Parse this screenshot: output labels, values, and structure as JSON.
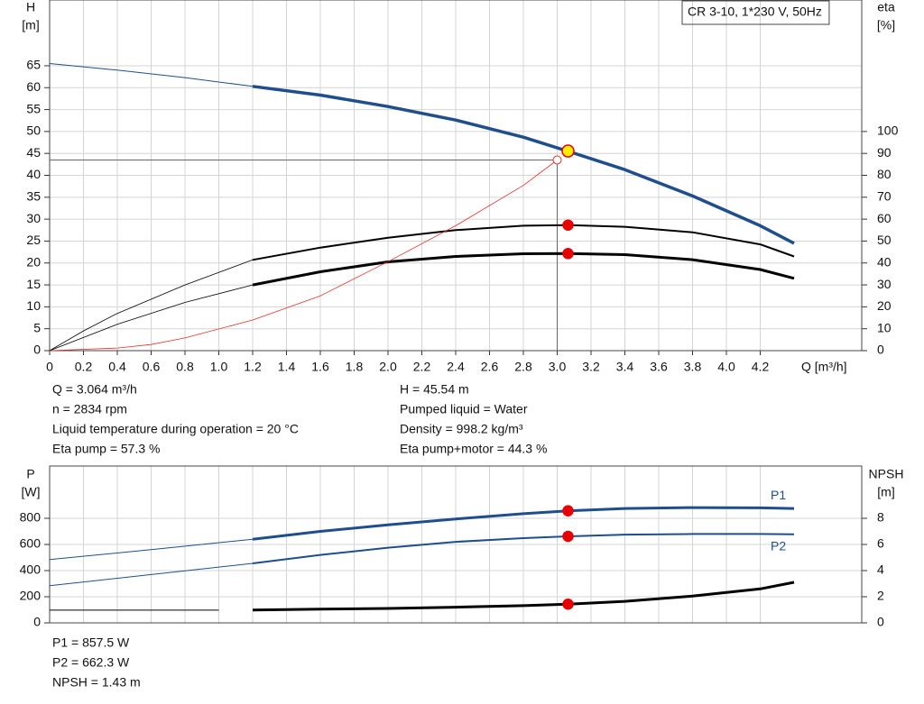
{
  "chart_data": [
    {
      "type": "line",
      "title": "CR 3-10, 1*230 V, 50Hz",
      "ylabel": "H",
      "yunit": "[m]",
      "y2label": "eta",
      "y2unit": "[%]",
      "xlabel": "Q [m³/h]",
      "xlim": [
        0,
        4.8
      ],
      "ylim": [
        0,
        80
      ],
      "y2lim": [
        0,
        160
      ],
      "xticks": [
        0,
        0.2,
        0.4,
        0.6,
        0.8,
        {
          "value": 1,
          "label": "1.0"
        },
        1.2,
        1.4,
        1.6,
        1.8,
        {
          "value": 2,
          "label": "2.0"
        },
        2.2,
        2.4,
        2.6,
        2.8,
        {
          "value": 3,
          "label": "3.0"
        },
        3.2,
        3.4,
        3.6,
        3.8,
        {
          "value": 4,
          "label": "4.0"
        },
        4.2
      ],
      "yticks": [
        0,
        5,
        10,
        15,
        20,
        25,
        30,
        35,
        40,
        45,
        50,
        55,
        60,
        65
      ],
      "y2ticks": [
        0,
        10,
        20,
        30,
        40,
        50,
        60,
        70,
        80,
        90,
        100
      ],
      "show_xtick_labels": true,
      "grid": true,
      "series": [
        {
          "color": "#1f4e8c",
          "width": 1,
          "x": [
            0,
            0.4,
            0.8,
            1.2
          ],
          "values": [
            65.5,
            64,
            62.3,
            60.3
          ]
        },
        {
          "color": "#1f4e8c",
          "width": 3.5,
          "x": [
            1.2,
            1.6,
            2.0,
            2.4,
            2.8,
            3.064,
            3.4,
            3.8,
            4.2,
            4.4
          ],
          "values": [
            60.3,
            58.3,
            55.7,
            52.6,
            48.7,
            45.5,
            41.3,
            35.3,
            28.5,
            24.5
          ]
        },
        {
          "color": "#000000",
          "width": 0.8,
          "axis": "y2",
          "x": [
            0,
            0.2,
            0.4,
            0.8,
            1.2
          ],
          "values": [
            0,
            9,
            17,
            30,
            41.4
          ]
        },
        {
          "color": "#000000",
          "width": 2,
          "axis": "y2",
          "x": [
            1.2,
            1.6,
            2.0,
            2.4,
            2.8,
            3.064,
            3.4,
            3.8,
            4.2,
            4.4
          ],
          "values": [
            41.4,
            47,
            51.5,
            55,
            57,
            57.3,
            56.5,
            54,
            48.5,
            43
          ]
        },
        {
          "color": "#000000",
          "width": 0.8,
          "axis": "y2",
          "x": [
            0,
            0.2,
            0.4,
            0.8,
            1.2
          ],
          "values": [
            0,
            6,
            12,
            22,
            30
          ]
        },
        {
          "color": "#000000",
          "width": 3,
          "axis": "y2",
          "x": [
            1.2,
            1.6,
            2.0,
            2.4,
            2.8,
            3.064,
            3.4,
            3.8,
            4.2,
            4.4
          ],
          "values": [
            30,
            36,
            40.5,
            43,
            44.2,
            44.3,
            43.8,
            41.5,
            37,
            33
          ]
        },
        {
          "color": "#e8302a",
          "width": 0.8,
          "x": [
            0,
            0.4,
            0.6,
            0.8,
            1.2,
            1.6,
            2.0,
            2.4,
            2.8,
            3.0
          ],
          "values": [
            0,
            0.6,
            1.4,
            2.9,
            7,
            12.5,
            20.3,
            28.5,
            37.7,
            43.5
          ]
        }
      ],
      "duty_point": {
        "x": 3.0,
        "y": 43.5
      },
      "points": [
        {
          "x": 3.064,
          "y": 45.54,
          "color": "#ffee00"
        },
        {
          "x": 3.064,
          "y": 57.3,
          "color": "#e80000",
          "axis": "y2"
        },
        {
          "x": 3.064,
          "y": 44.3,
          "color": "#e80000",
          "axis": "y2"
        }
      ],
      "notes": [
        "Q = 3.064 m³/h",
        "n = 2834 rpm",
        "Liquid temperature during operation = 20 °C",
        "Eta pump = 57.3 %",
        "H = 45.54 m",
        "Pumped liquid = Water",
        "Density = 998.2 kg/m³",
        "Eta pump+motor = 44.3 %"
      ]
    },
    {
      "type": "line",
      "ylabel": "P",
      "yunit": "[W]",
      "y2label": "NPSH",
      "y2unit": "[m]",
      "xlim": [
        0,
        4.8
      ],
      "ylim": [
        0,
        1200
      ],
      "y2lim": [
        0,
        12
      ],
      "xticks": [
        0,
        0.2,
        0.4,
        0.6,
        0.8,
        1,
        1.2,
        1.4,
        1.6,
        1.8,
        2,
        2.2,
        2.4,
        2.6,
        2.8,
        3,
        3.2,
        3.4,
        3.6,
        3.8,
        4,
        4.2
      ],
      "yticks": [
        0,
        200,
        400,
        600,
        800
      ],
      "y2ticks": [
        0,
        2,
        4,
        6,
        8
      ],
      "show_xtick_labels": false,
      "grid": true,
      "series": [
        {
          "color": "#1f4e8c",
          "width": 1,
          "x": [
            0,
            0.6,
            1.2
          ],
          "values": [
            485,
            560,
            640
          ]
        },
        {
          "name": "P1",
          "color": "#1f4e8c",
          "width": 3,
          "x": [
            1.2,
            1.6,
            2.0,
            2.4,
            2.8,
            3.064,
            3.4,
            3.8,
            4.2,
            4.4
          ],
          "values": [
            640,
            700,
            750,
            795,
            835,
            857.5,
            875,
            882,
            880,
            875
          ]
        },
        {
          "color": "#1f4e8c",
          "width": 1,
          "x": [
            0,
            0.6,
            1.2
          ],
          "values": [
            285,
            370,
            455
          ]
        },
        {
          "name": "P2",
          "color": "#1f4e8c",
          "width": 2,
          "x": [
            1.2,
            1.6,
            2.0,
            2.4,
            2.8,
            3.064,
            3.4,
            3.8,
            4.2,
            4.4
          ],
          "values": [
            455,
            520,
            575,
            620,
            648,
            662.3,
            675,
            680,
            680,
            678
          ]
        },
        {
          "color": "#000000",
          "width": 1,
          "axis": "y2",
          "x": [
            0,
            1.0
          ],
          "values": [
            0.97,
            0.97
          ]
        },
        {
          "color": "#000000",
          "width": 3,
          "axis": "y2",
          "x": [
            1.2,
            1.6,
            2.0,
            2.4,
            2.8,
            3.064,
            3.4,
            3.8,
            4.2,
            4.4
          ],
          "values": [
            0.98,
            1.05,
            1.1,
            1.2,
            1.32,
            1.43,
            1.65,
            2.05,
            2.6,
            3.1
          ]
        }
      ],
      "points": [
        {
          "x": 3.064,
          "y": 857.5,
          "color": "#e80000"
        },
        {
          "x": 3.064,
          "y": 662.3,
          "color": "#e80000"
        },
        {
          "x": 3.064,
          "y": 1.43,
          "color": "#e80000",
          "axis": "y2"
        }
      ],
      "notes": [
        "P1 = 857.5 W",
        "P2 = 662.3 W",
        "NPSH = 1.43 m"
      ]
    }
  ]
}
